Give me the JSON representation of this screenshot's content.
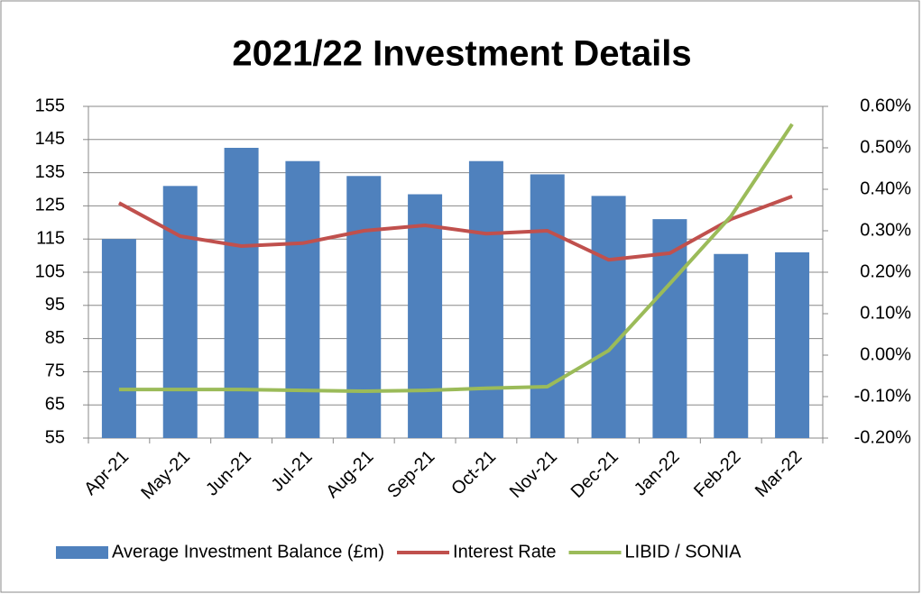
{
  "chart_data": {
    "type": "bar-line",
    "title": "2021/22 Investment Details",
    "categories": [
      "Apr-21",
      "May-21",
      "Jun-21",
      "Jul-21",
      "Aug-21",
      "Sep-21",
      "Oct-21",
      "Nov-21",
      "Dec-21",
      "Jan-22",
      "Feb-22",
      "Mar-22"
    ],
    "series": [
      {
        "name": "Average Investment Balance (£m)",
        "type": "bar",
        "color": "#4f81bd",
        "axis": "y",
        "values": [
          115,
          131,
          142.5,
          138.5,
          134,
          128.5,
          138.5,
          134.5,
          128,
          121,
          110.5,
          111
        ]
      },
      {
        "name": "Interest Rate",
        "type": "line",
        "color": "#c0504d",
        "axis": "y2",
        "values": [
          0.367,
          0.287,
          0.263,
          0.27,
          0.3,
          0.313,
          0.293,
          0.3,
          0.23,
          0.246,
          0.328,
          0.383
        ]
      },
      {
        "name": "LIBID / SONIA",
        "type": "line",
        "color": "#9bbb59",
        "axis": "y2",
        "values": [
          -0.083,
          -0.083,
          -0.083,
          -0.085,
          -0.087,
          -0.085,
          -0.08,
          -0.076,
          0.011,
          0.172,
          0.335,
          0.557
        ]
      }
    ],
    "ylim": [
      55,
      155
    ],
    "yticks": [
      55,
      65,
      75,
      85,
      95,
      105,
      115,
      125,
      135,
      145,
      155
    ],
    "y2lim": [
      -0.2,
      0.6
    ],
    "y2ticks": [
      {
        "value": -0.2,
        "label": "-0.20%"
      },
      {
        "value": -0.1,
        "label": "-0.10%"
      },
      {
        "value": 0,
        "label": "0.00%"
      },
      {
        "value": 0.1,
        "label": "0.10%"
      },
      {
        "value": 0.2,
        "label": "0.20%"
      },
      {
        "value": 0.3,
        "label": "0.30%"
      },
      {
        "value": 0.4,
        "label": "0.40%"
      },
      {
        "value": 0.5,
        "label": "0.50%"
      },
      {
        "value": 0.6,
        "label": "0.60%"
      }
    ],
    "legend": "bottom"
  }
}
